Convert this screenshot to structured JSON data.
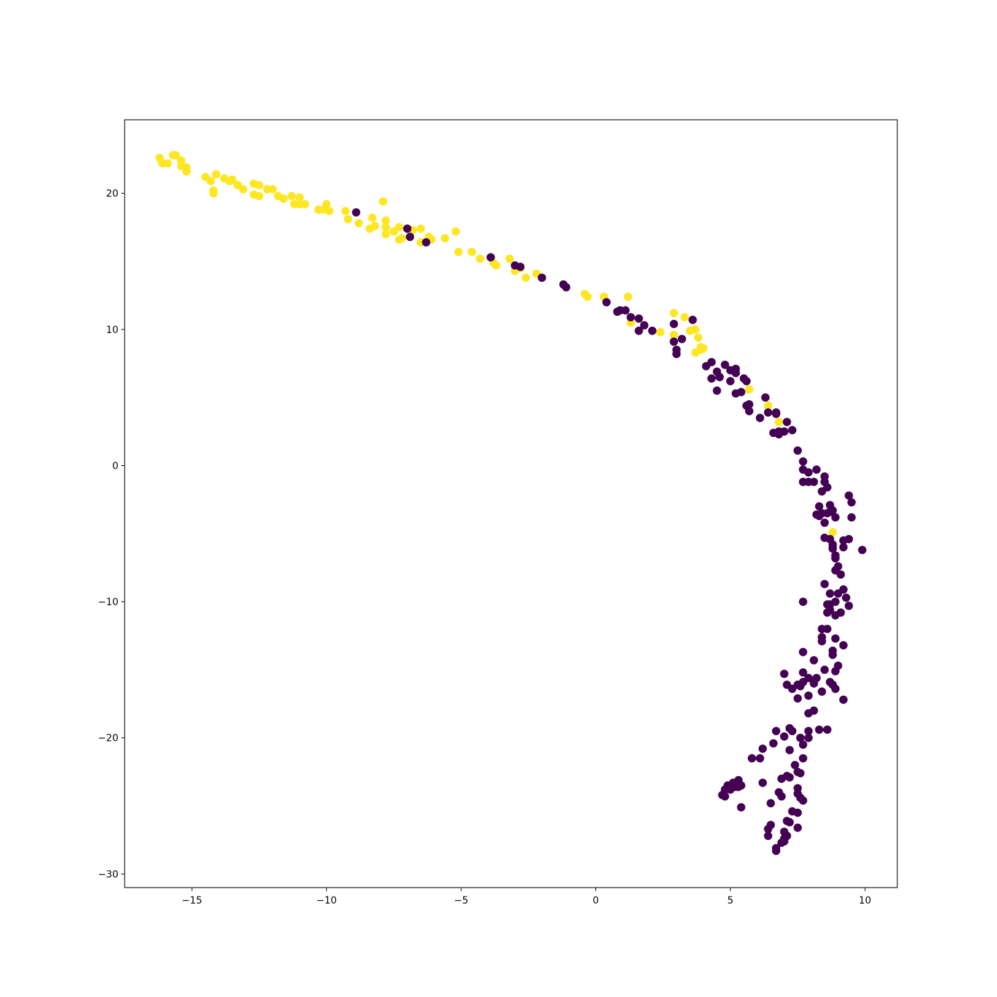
{
  "chart_data": {
    "type": "scatter",
    "title": "",
    "xlabel": "",
    "ylabel": "",
    "xlim": [
      -17.5,
      11.2
    ],
    "ylim": [
      -31.0,
      25.4
    ],
    "xticks": [
      -15,
      -10,
      -5,
      0,
      5,
      10
    ],
    "yticks": [
      -30,
      -20,
      -10,
      0,
      10,
      20
    ],
    "xtick_labels": [
      "−15",
      "−10",
      "−5",
      "0",
      "5",
      "10"
    ],
    "ytick_labels": [
      "−30",
      "−20",
      "−10",
      "0",
      "10",
      "20"
    ],
    "grid": false,
    "legend": "none",
    "class_colors": {
      "0": "#440154",
      "1": "#fde725"
    },
    "points": [
      [
        -16.2,
        22.6,
        1
      ],
      [
        -16.1,
        22.2,
        1
      ],
      [
        -15.9,
        22.2,
        1
      ],
      [
        -15.7,
        22.8,
        1
      ],
      [
        -15.6,
        22.8,
        1
      ],
      [
        -15.4,
        22.4,
        1
      ],
      [
        -15.4,
        22.0,
        1
      ],
      [
        -15.2,
        21.9,
        1
      ],
      [
        -15.2,
        21.6,
        1
      ],
      [
        -14.5,
        21.2,
        1
      ],
      [
        -14.3,
        20.9,
        1
      ],
      [
        -14.2,
        20.2,
        1
      ],
      [
        -14.2,
        20.0,
        1
      ],
      [
        -14.1,
        21.4,
        1
      ],
      [
        -13.8,
        21.1,
        1
      ],
      [
        -13.6,
        20.9,
        1
      ],
      [
        -13.5,
        21.0,
        1
      ],
      [
        -13.3,
        20.6,
        1
      ],
      [
        -13.1,
        20.3,
        1
      ],
      [
        -12.7,
        20.7,
        1
      ],
      [
        -12.7,
        19.9,
        1
      ],
      [
        -12.5,
        20.6,
        1
      ],
      [
        -12.5,
        19.8,
        1
      ],
      [
        -12.2,
        20.3,
        1
      ],
      [
        -12.0,
        20.3,
        1
      ],
      [
        -11.8,
        19.8,
        1
      ],
      [
        -11.6,
        19.6,
        1
      ],
      [
        -11.3,
        19.8,
        1
      ],
      [
        -11.2,
        19.2,
        1
      ],
      [
        -11.0,
        19.2,
        1
      ],
      [
        -11.0,
        19.7,
        1
      ],
      [
        -10.8,
        19.2,
        1
      ],
      [
        -10.3,
        18.8,
        1
      ],
      [
        -10.1,
        18.8,
        1
      ],
      [
        -10.0,
        19.2,
        1
      ],
      [
        -9.9,
        18.7,
        1
      ],
      [
        -9.3,
        18.7,
        1
      ],
      [
        -9.2,
        18.1,
        1
      ],
      [
        -8.8,
        17.8,
        1
      ],
      [
        -8.4,
        17.4,
        1
      ],
      [
        -8.3,
        18.2,
        1
      ],
      [
        -8.2,
        17.6,
        1
      ],
      [
        -7.9,
        19.4,
        1
      ],
      [
        -7.8,
        18.0,
        1
      ],
      [
        -7.8,
        17.5,
        1
      ],
      [
        -7.8,
        17.0,
        1
      ],
      [
        -7.5,
        17.2,
        1
      ],
      [
        -7.3,
        17.5,
        1
      ],
      [
        -7.3,
        16.6,
        1
      ],
      [
        -7.2,
        16.7,
        1
      ],
      [
        -7.0,
        17.4,
        1
      ],
      [
        -6.8,
        17.3,
        1
      ],
      [
        -6.5,
        17.4,
        1
      ],
      [
        -6.5,
        16.4,
        1
      ],
      [
        -6.2,
        16.8,
        1
      ],
      [
        -6.1,
        16.6,
        1
      ],
      [
        -5.6,
        16.7,
        1
      ],
      [
        -5.2,
        17.2,
        1
      ],
      [
        -5.1,
        15.7,
        1
      ],
      [
        -4.6,
        15.7,
        1
      ],
      [
        -4.3,
        15.2,
        1
      ],
      [
        -3.9,
        15.3,
        1
      ],
      [
        -3.8,
        14.9,
        1
      ],
      [
        -3.7,
        14.7,
        1
      ],
      [
        -3.2,
        15.2,
        1
      ],
      [
        -3.0,
        14.3,
        1
      ],
      [
        -2.8,
        14.5,
        1
      ],
      [
        -2.6,
        13.8,
        1
      ],
      [
        -2.2,
        14.1,
        1
      ],
      [
        -0.4,
        12.6,
        1
      ],
      [
        -0.3,
        12.4,
        1
      ],
      [
        0.3,
        12.4,
        1
      ],
      [
        1.2,
        12.4,
        1
      ],
      [
        1.3,
        10.5,
        1
      ],
      [
        2.4,
        9.8,
        1
      ],
      [
        2.9,
        11.2,
        1
      ],
      [
        2.9,
        9.6,
        1
      ],
      [
        3.3,
        10.9,
        1
      ],
      [
        3.5,
        9.9,
        1
      ],
      [
        3.7,
        10.0,
        1
      ],
      [
        3.8,
        9.4,
        1
      ],
      [
        3.7,
        8.3,
        1
      ],
      [
        3.9,
        8.7,
        1
      ],
      [
        3.9,
        8.5,
        1
      ],
      [
        4.0,
        8.6,
        1
      ],
      [
        5.7,
        5.6,
        1
      ],
      [
        6.4,
        4.4,
        1
      ],
      [
        6.8,
        3.2,
        1
      ],
      [
        8.8,
        -4.9,
        1
      ],
      [
        -8.9,
        18.6,
        0
      ],
      [
        -7.0,
        17.4,
        0
      ],
      [
        -6.9,
        16.8,
        0
      ],
      [
        -6.3,
        16.4,
        0
      ],
      [
        -3.9,
        15.3,
        0
      ],
      [
        -3.0,
        14.7,
        0
      ],
      [
        -2.8,
        14.6,
        0
      ],
      [
        -2.0,
        13.8,
        0
      ],
      [
        -1.2,
        13.3,
        0
      ],
      [
        -1.1,
        13.1,
        0
      ],
      [
        0.4,
        12.0,
        0
      ],
      [
        0.8,
        11.3,
        0
      ],
      [
        0.9,
        11.4,
        0
      ],
      [
        1.1,
        11.4,
        0
      ],
      [
        1.3,
        10.9,
        0
      ],
      [
        1.6,
        10.8,
        0
      ],
      [
        1.6,
        9.9,
        0
      ],
      [
        1.8,
        10.3,
        0
      ],
      [
        2.1,
        9.9,
        0
      ],
      [
        2.9,
        10.4,
        0
      ],
      [
        2.9,
        9.1,
        0
      ],
      [
        3.0,
        8.2,
        0
      ],
      [
        3.0,
        8.5,
        0
      ],
      [
        3.2,
        9.3,
        0
      ],
      [
        3.6,
        10.7,
        0
      ],
      [
        4.1,
        7.3,
        0
      ],
      [
        4.3,
        7.6,
        0
      ],
      [
        4.3,
        6.4,
        0
      ],
      [
        4.5,
        6.9,
        0
      ],
      [
        4.5,
        5.5,
        0
      ],
      [
        4.6,
        6.5,
        0
      ],
      [
        4.8,
        7.4,
        0
      ],
      [
        5.0,
        7.0,
        0
      ],
      [
        5.0,
        6.2,
        0
      ],
      [
        5.2,
        7.1,
        0
      ],
      [
        5.2,
        6.8,
        0
      ],
      [
        5.2,
        5.3,
        0
      ],
      [
        5.4,
        5.4,
        0
      ],
      [
        5.5,
        6.4,
        0
      ],
      [
        5.6,
        6.2,
        0
      ],
      [
        5.6,
        4.4,
        0
      ],
      [
        5.7,
        4.0,
        0
      ],
      [
        5.7,
        4.5,
        0
      ],
      [
        6.1,
        3.5,
        0
      ],
      [
        6.3,
        5.0,
        0
      ],
      [
        6.4,
        3.9,
        0
      ],
      [
        6.6,
        2.4,
        0
      ],
      [
        6.7,
        3.8,
        0
      ],
      [
        6.7,
        3.9,
        0
      ],
      [
        6.8,
        2.5,
        0
      ],
      [
        6.8,
        2.3,
        0
      ],
      [
        7.0,
        2.5,
        0
      ],
      [
        7.1,
        3.2,
        0
      ],
      [
        7.3,
        2.6,
        0
      ],
      [
        7.5,
        1.1,
        0
      ],
      [
        7.7,
        0.3,
        0
      ],
      [
        7.7,
        -0.3,
        0
      ],
      [
        7.7,
        -1.2,
        0
      ],
      [
        7.9,
        -0.5,
        0
      ],
      [
        7.9,
        -1.2,
        0
      ],
      [
        8.1,
        -1.2,
        0
      ],
      [
        8.2,
        -0.3,
        0
      ],
      [
        8.2,
        -3.6,
        0
      ],
      [
        8.3,
        -3.0,
        0
      ],
      [
        8.3,
        -3.7,
        0
      ],
      [
        8.4,
        -3.5,
        0
      ],
      [
        8.4,
        -1.9,
        0
      ],
      [
        8.5,
        -1.2,
        0
      ],
      [
        8.5,
        -0.8,
        0
      ],
      [
        8.6,
        -1.6,
        0
      ],
      [
        8.5,
        -4.2,
        0
      ],
      [
        8.6,
        -3.5,
        0
      ],
      [
        8.7,
        -2.9,
        0
      ],
      [
        8.7,
        -3.4,
        0
      ],
      [
        8.8,
        -3.3,
        0
      ],
      [
        8.9,
        -3.8,
        0
      ],
      [
        8.5,
        -5.3,
        0
      ],
      [
        8.7,
        -5.4,
        0
      ],
      [
        8.8,
        -5.8,
        0
      ],
      [
        8.8,
        -6.0,
        0
      ],
      [
        8.8,
        -6.1,
        0
      ],
      [
        8.9,
        -6.6,
        0
      ],
      [
        8.9,
        -6.8,
        0
      ],
      [
        8.9,
        -7.7,
        0
      ],
      [
        9.0,
        -7.4,
        0
      ],
      [
        9.1,
        -8.0,
        0
      ],
      [
        9.2,
        -6.0,
        0
      ],
      [
        9.2,
        -5.5,
        0
      ],
      [
        9.4,
        -5.4,
        0
      ],
      [
        9.5,
        -3.8,
        0
      ],
      [
        9.4,
        -2.2,
        0
      ],
      [
        9.5,
        -2.7,
        0
      ],
      [
        9.9,
        -6.2,
        0
      ],
      [
        7.7,
        -10.0,
        0
      ],
      [
        8.5,
        -8.7,
        0
      ],
      [
        8.6,
        -10.2,
        0
      ],
      [
        8.6,
        -10.8,
        0
      ],
      [
        8.7,
        -10.2,
        0
      ],
      [
        8.7,
        -9.4,
        0
      ],
      [
        8.7,
        -10.6,
        0
      ],
      [
        8.9,
        -11.0,
        0
      ],
      [
        8.9,
        -10.0,
        0
      ],
      [
        9.0,
        -9.4,
        0
      ],
      [
        9.1,
        -10.8,
        0
      ],
      [
        9.2,
        -9.1,
        0
      ],
      [
        9.3,
        -9.7,
        0
      ],
      [
        9.4,
        -10.3,
        0
      ],
      [
        8.4,
        -12.0,
        0
      ],
      [
        8.4,
        -12.9,
        0
      ],
      [
        8.4,
        -12.6,
        0
      ],
      [
        8.6,
        -12.0,
        0
      ],
      [
        8.8,
        -13.9,
        0
      ],
      [
        8.8,
        -13.6,
        0
      ],
      [
        8.9,
        -12.7,
        0
      ],
      [
        9.0,
        -14.7,
        0
      ],
      [
        8.9,
        -15.1,
        0
      ],
      [
        9.2,
        -13.2,
        0
      ],
      [
        7.7,
        -13.7,
        0
      ],
      [
        7.0,
        -15.3,
        0
      ],
      [
        7.1,
        -16.1,
        0
      ],
      [
        7.3,
        -16.4,
        0
      ],
      [
        7.5,
        -16.1,
        0
      ],
      [
        7.5,
        -17.1,
        0
      ],
      [
        7.6,
        -16.2,
        0
      ],
      [
        7.7,
        -15.9,
        0
      ],
      [
        7.7,
        -15.2,
        0
      ],
      [
        7.9,
        -15.6,
        0
      ],
      [
        7.9,
        -16.9,
        0
      ],
      [
        8.1,
        -16.0,
        0
      ],
      [
        8.1,
        -14.3,
        0
      ],
      [
        8.2,
        -15.6,
        0
      ],
      [
        8.4,
        -16.6,
        0
      ],
      [
        8.5,
        -15.0,
        0
      ],
      [
        8.7,
        -15.9,
        0
      ],
      [
        8.8,
        -16.1,
        0
      ],
      [
        8.9,
        -16.4,
        0
      ],
      [
        9.2,
        -17.2,
        0
      ],
      [
        7.9,
        -18.2,
        0
      ],
      [
        8.1,
        -18.0,
        0
      ],
      [
        6.7,
        -19.5,
        0
      ],
      [
        7.0,
        -19.9,
        0
      ],
      [
        7.2,
        -19.3,
        0
      ],
      [
        7.3,
        -19.5,
        0
      ],
      [
        7.6,
        -20.0,
        0
      ],
      [
        7.7,
        -20.5,
        0
      ],
      [
        7.9,
        -20.0,
        0
      ],
      [
        7.9,
        -19.5,
        0
      ],
      [
        8.3,
        -19.4,
        0
      ],
      [
        8.6,
        -19.4,
        0
      ],
      [
        6.6,
        -20.4,
        0
      ],
      [
        7.2,
        -20.9,
        0
      ],
      [
        5.8,
        -21.5,
        0
      ],
      [
        6.1,
        -21.5,
        0
      ],
      [
        6.2,
        -20.8,
        0
      ],
      [
        7.4,
        -22.0,
        0
      ],
      [
        7.5,
        -22.5,
        0
      ],
      [
        7.6,
        -22.6,
        0
      ],
      [
        7.7,
        -21.5,
        0
      ],
      [
        4.7,
        -24.2,
        0
      ],
      [
        4.8,
        -23.8,
        0
      ],
      [
        4.8,
        -24.3,
        0
      ],
      [
        4.9,
        -23.5,
        0
      ],
      [
        5.0,
        -23.8,
        0
      ],
      [
        5.1,
        -23.3,
        0
      ],
      [
        5.2,
        -23.6,
        0
      ],
      [
        5.3,
        -23.1,
        0
      ],
      [
        5.3,
        -23.6,
        0
      ],
      [
        5.4,
        -25.1,
        0
      ],
      [
        5.4,
        -23.5,
        0
      ],
      [
        6.2,
        -23.3,
        0
      ],
      [
        6.5,
        -24.8,
        0
      ],
      [
        6.8,
        -24.0,
        0
      ],
      [
        6.9,
        -24.3,
        0
      ],
      [
        6.9,
        -23.0,
        0
      ],
      [
        7.1,
        -22.8,
        0
      ],
      [
        7.2,
        -22.9,
        0
      ],
      [
        7.5,
        -23.7,
        0
      ],
      [
        7.5,
        -24.1,
        0
      ],
      [
        7.6,
        -24.4,
        0
      ],
      [
        7.7,
        -24.6,
        0
      ],
      [
        6.4,
        -26.7,
        0
      ],
      [
        6.5,
        -26.4,
        0
      ],
      [
        6.4,
        -27.2,
        0
      ],
      [
        7.0,
        -26.9,
        0
      ],
      [
        7.0,
        -27.6,
        0
      ],
      [
        7.1,
        -27.2,
        0
      ],
      [
        7.1,
        -26.1,
        0
      ],
      [
        7.2,
        -26.2,
        0
      ],
      [
        7.3,
        -25.4,
        0
      ],
      [
        7.5,
        -26.6,
        0
      ],
      [
        7.5,
        -25.5,
        0
      ],
      [
        6.7,
        -28.1,
        0
      ],
      [
        6.7,
        -28.3,
        0
      ],
      [
        6.9,
        -27.7,
        0
      ],
      [
        7.0,
        -27.4,
        0
      ]
    ]
  }
}
